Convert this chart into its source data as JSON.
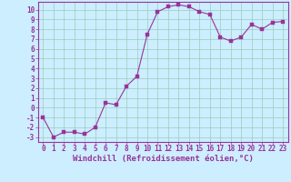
{
  "x": [
    0,
    1,
    2,
    3,
    4,
    5,
    6,
    7,
    8,
    9,
    10,
    11,
    12,
    13,
    14,
    15,
    16,
    17,
    18,
    19,
    20,
    21,
    22,
    23
  ],
  "y": [
    -1.0,
    -3.0,
    -2.5,
    -2.5,
    -2.7,
    -2.0,
    0.5,
    0.3,
    2.2,
    3.2,
    7.5,
    9.8,
    10.3,
    10.5,
    10.3,
    9.8,
    9.5,
    7.2,
    6.8,
    7.2,
    8.5,
    8.0,
    8.7,
    8.8
  ],
  "line_color": "#993399",
  "marker_color": "#993399",
  "bg_color": "#cceeff",
  "grid_color": "#99ccbb",
  "xlabel": "Windchill (Refroidissement éolien,°C)",
  "xlim": [
    -0.5,
    23.5
  ],
  "ylim": [
    -3.5,
    10.8
  ],
  "yticks": [
    -3,
    -2,
    -1,
    0,
    1,
    2,
    3,
    4,
    5,
    6,
    7,
    8,
    9,
    10
  ],
  "xticks": [
    0,
    1,
    2,
    3,
    4,
    5,
    6,
    7,
    8,
    9,
    10,
    11,
    12,
    13,
    14,
    15,
    16,
    17,
    18,
    19,
    20,
    21,
    22,
    23
  ],
  "xlabel_fontsize": 6.5,
  "tick_fontsize": 5.5,
  "spine_color": "#993399",
  "lw": 0.8,
  "marker_size": 2.2
}
